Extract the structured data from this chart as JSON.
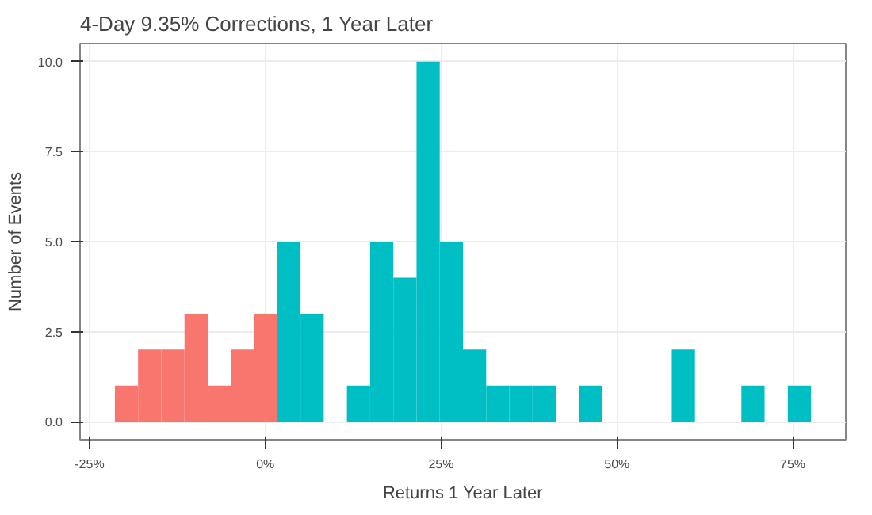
{
  "chart_data": {
    "type": "histogram",
    "title": "4-Day 9.35% Corrections, 1 Year Later",
    "xlabel": "Returns 1 Year Later",
    "ylabel": "Number of Events",
    "bins": [
      -21.4,
      -18.1,
      -14.8,
      -11.5,
      -8.2,
      -4.9,
      -1.6,
      1.7,
      5.0,
      8.3,
      11.6,
      14.9,
      18.2,
      21.5,
      24.8,
      28.1,
      31.4,
      34.7,
      38.0,
      41.3,
      44.6,
      47.9,
      51.2,
      54.5,
      57.8,
      61.1,
      64.4,
      67.7,
      71.0,
      74.3,
      77.6
    ],
    "values": [
      1,
      2,
      2,
      3,
      1,
      2,
      3,
      5,
      3,
      0,
      1,
      5,
      4,
      10,
      5,
      2,
      1,
      1,
      1,
      0,
      1,
      0,
      0,
      0,
      2,
      0,
      0,
      1,
      0,
      1
    ],
    "colors": [
      "#f8766d",
      "#f8766d",
      "#f8766d",
      "#f8766d",
      "#f8766d",
      "#f8766d",
      "#f8766d",
      "#00bfc4",
      "#00bfc4",
      "#00bfc4",
      "#00bfc4",
      "#00bfc4",
      "#00bfc4",
      "#00bfc4",
      "#00bfc4",
      "#00bfc4",
      "#00bfc4",
      "#00bfc4",
      "#00bfc4",
      "#00bfc4",
      "#00bfc4",
      "#00bfc4",
      "#00bfc4",
      "#00bfc4",
      "#00bfc4",
      "#00bfc4",
      "#00bfc4",
      "#00bfc4",
      "#00bfc4",
      "#00bfc4"
    ],
    "xlim": [
      -26.35,
      82.55
    ],
    "ylim": [
      -0.5,
      10.5
    ],
    "xticks": [
      {
        "value": -25,
        "label": "-25%"
      },
      {
        "value": 0,
        "label": "0%"
      },
      {
        "value": 25,
        "label": "25%"
      },
      {
        "value": 50,
        "label": "50%"
      },
      {
        "value": 75,
        "label": "75%"
      }
    ],
    "yticks": [
      {
        "value": 0,
        "label": "0.0"
      },
      {
        "value": 2.5,
        "label": "2.5"
      },
      {
        "value": 5,
        "label": "5.0"
      },
      {
        "value": 7.5,
        "label": "7.5"
      },
      {
        "value": 10,
        "label": "10.0"
      }
    ],
    "grid": true
  }
}
